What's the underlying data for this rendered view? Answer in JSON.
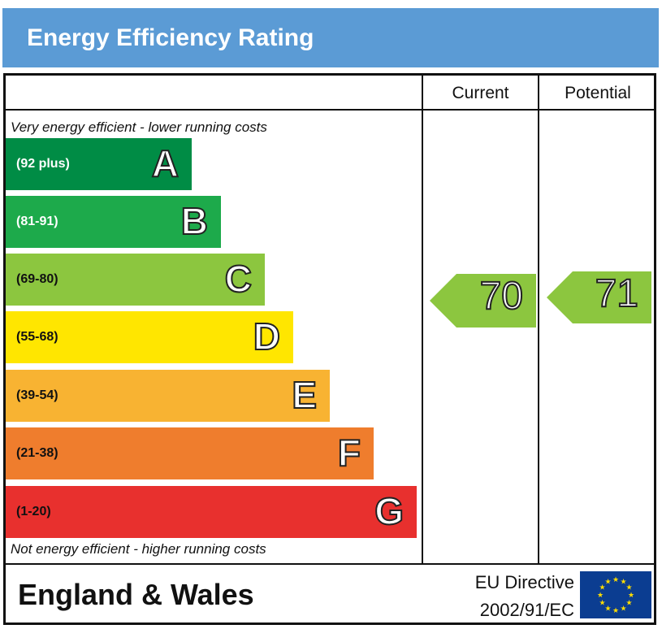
{
  "header": {
    "title": "Energy Efficiency Rating"
  },
  "columns": {
    "current": "Current",
    "potential": "Potential"
  },
  "notes": {
    "top": "Very energy efficient - lower running costs",
    "bottom": "Not energy efficient - higher running costs"
  },
  "chart_data": {
    "type": "bar",
    "categories": [
      "A",
      "B",
      "C",
      "D",
      "E",
      "F",
      "G"
    ],
    "ranges": [
      "(92 plus)",
      "(81-91)",
      "(69-80)",
      "(55-68)",
      "(39-54)",
      "(21-38)",
      "(1-20)"
    ],
    "colors": [
      "#008c45",
      "#1daa4b",
      "#8cc63f",
      "#ffe600",
      "#f8b332",
      "#ef7d2d",
      "#e8302e"
    ],
    "range_text_colors": [
      "#ffffff",
      "#ffffff",
      "#111111",
      "#111111",
      "#111111",
      "#111111",
      "#111111"
    ],
    "current": {
      "value": 70,
      "band": "C"
    },
    "potential": {
      "value": 71,
      "band": "C"
    },
    "arrow_color": "#8cc63f"
  },
  "footer": {
    "region": "England & Wales",
    "directive_line1": "EU Directive",
    "directive_line2": "2002/91/EC"
  }
}
